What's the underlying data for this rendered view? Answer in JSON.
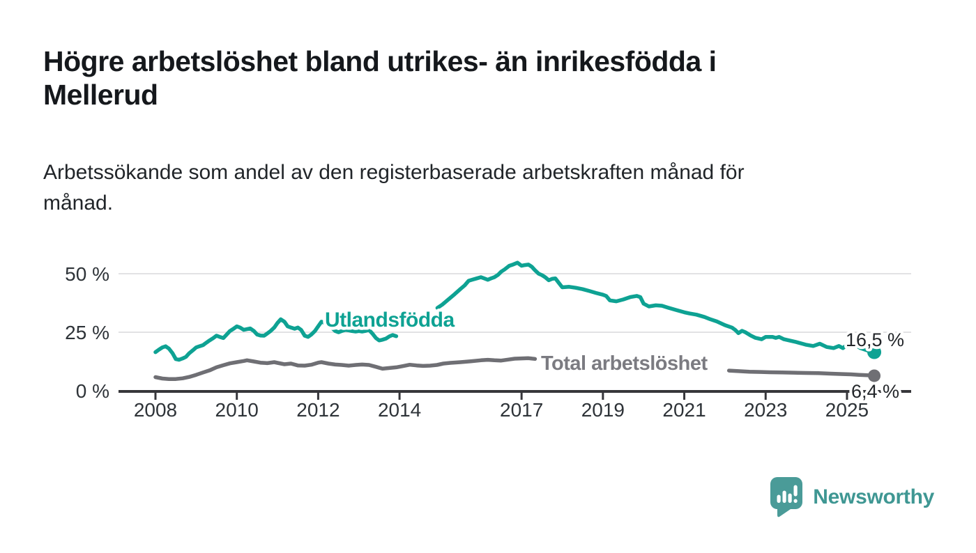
{
  "header": {
    "title": "Högre arbetslöshet bland utrikes- än inrikesfödda i Mellerud",
    "title_lines": [
      "Högre arbetslöshet bland utrikes- än inrikesfödda i",
      "Mellerud"
    ],
    "subtitle": "Arbetssökande som andel av den registerbaserade arbetskraften månad för månad.",
    "subtitle_lines": [
      "Arbetssökande som andel av den registerbaserade arbetskraften månad för",
      "månad."
    ]
  },
  "chart_data": {
    "type": "line",
    "title": "Högre arbetslöshet bland utrikes- än inrikesfödda i Mellerud",
    "subtitle": "Arbetssökande som andel av den registerbaserade arbetskraften månad för månad.",
    "grid": true,
    "legend_position": "inline-labels",
    "x": {
      "domain": [
        2008,
        2025.67
      ],
      "ticks": [
        2008,
        2010,
        2012,
        2014,
        2017,
        2019,
        2021,
        2023,
        2025
      ]
    },
    "y": {
      "ylim": [
        0,
        57
      ],
      "unit": "%",
      "ticks": [
        {
          "value": 0,
          "label": "0 %"
        },
        {
          "value": 25,
          "label": "25 %"
        },
        {
          "value": 50,
          "label": "50 %"
        }
      ],
      "gridlines": [
        25,
        50
      ]
    },
    "series": [
      {
        "name": "Utlandsfödda",
        "color": "#0ea293",
        "label_color": "#0ea293",
        "end_value": 16.5,
        "end_label": "16,5 %",
        "label_gap": [
          2013.95,
          2014.9
        ],
        "points": [
          [
            2008.0,
            16.5
          ],
          [
            2008.08,
            17.5
          ],
          [
            2008.17,
            18.5
          ],
          [
            2008.25,
            19.0
          ],
          [
            2008.33,
            18.0
          ],
          [
            2008.42,
            16.0
          ],
          [
            2008.5,
            13.5
          ],
          [
            2008.58,
            13.2
          ],
          [
            2008.67,
            13.8
          ],
          [
            2008.75,
            14.5
          ],
          [
            2008.83,
            16.0
          ],
          [
            2008.92,
            17.3
          ],
          [
            2009.0,
            18.5
          ],
          [
            2009.08,
            19.0
          ],
          [
            2009.17,
            19.5
          ],
          [
            2009.25,
            20.5
          ],
          [
            2009.33,
            21.5
          ],
          [
            2009.42,
            22.5
          ],
          [
            2009.5,
            23.5
          ],
          [
            2009.58,
            23.0
          ],
          [
            2009.67,
            22.5
          ],
          [
            2009.75,
            24.0
          ],
          [
            2009.83,
            25.5
          ],
          [
            2009.92,
            26.5
          ],
          [
            2010.0,
            27.5
          ],
          [
            2010.08,
            27.0
          ],
          [
            2010.17,
            26.0
          ],
          [
            2010.25,
            26.3
          ],
          [
            2010.33,
            26.6
          ],
          [
            2010.42,
            25.5
          ],
          [
            2010.5,
            24.0
          ],
          [
            2010.58,
            23.6
          ],
          [
            2010.67,
            23.5
          ],
          [
            2010.75,
            24.5
          ],
          [
            2010.83,
            25.5
          ],
          [
            2010.92,
            27.0
          ],
          [
            2011.0,
            29.0
          ],
          [
            2011.08,
            30.5
          ],
          [
            2011.17,
            29.5
          ],
          [
            2011.25,
            27.5
          ],
          [
            2011.33,
            27.0
          ],
          [
            2011.42,
            26.5
          ],
          [
            2011.5,
            27.0
          ],
          [
            2011.58,
            26.0
          ],
          [
            2011.67,
            23.5
          ],
          [
            2011.75,
            23.0
          ],
          [
            2011.83,
            24.0
          ],
          [
            2011.92,
            25.5
          ],
          [
            2012.0,
            27.5
          ],
          [
            2012.08,
            29.5
          ],
          [
            2012.17,
            29.0
          ],
          [
            2012.25,
            28.5
          ],
          [
            2012.33,
            27.0
          ],
          [
            2012.42,
            25.5
          ],
          [
            2012.5,
            25.0
          ],
          [
            2012.58,
            25.5
          ],
          [
            2012.67,
            26.0
          ],
          [
            2012.75,
            25.8
          ],
          [
            2012.83,
            25.5
          ],
          [
            2012.92,
            25.3
          ],
          [
            2013.0,
            25.5
          ],
          [
            2013.08,
            25.3
          ],
          [
            2013.17,
            25.6
          ],
          [
            2013.25,
            26.0
          ],
          [
            2013.33,
            24.5
          ],
          [
            2013.42,
            22.5
          ],
          [
            2013.5,
            21.5
          ],
          [
            2013.58,
            21.8
          ],
          [
            2013.67,
            22.3
          ],
          [
            2013.75,
            23.2
          ],
          [
            2013.83,
            23.8
          ],
          [
            2013.92,
            23.3
          ],
          [
            2014.1,
            26.0
          ],
          [
            2014.3,
            28.5
          ],
          [
            2014.5,
            31.0
          ],
          [
            2014.7,
            33.2
          ],
          [
            2014.93,
            35.4
          ],
          [
            2015.05,
            36.8
          ],
          [
            2015.2,
            39.0
          ],
          [
            2015.35,
            41.2
          ],
          [
            2015.5,
            43.5
          ],
          [
            2015.6,
            45.0
          ],
          [
            2015.7,
            47.0
          ],
          [
            2015.8,
            47.5
          ],
          [
            2015.9,
            48.0
          ],
          [
            2016.0,
            48.5
          ],
          [
            2016.08,
            48.0
          ],
          [
            2016.17,
            47.4
          ],
          [
            2016.25,
            48.0
          ],
          [
            2016.33,
            48.5
          ],
          [
            2016.42,
            49.5
          ],
          [
            2016.5,
            50.9
          ],
          [
            2016.58,
            51.8
          ],
          [
            2016.7,
            53.4
          ],
          [
            2016.8,
            54.0
          ],
          [
            2016.9,
            54.7
          ],
          [
            2017.0,
            53.4
          ],
          [
            2017.08,
            53.7
          ],
          [
            2017.17,
            53.9
          ],
          [
            2017.25,
            53.0
          ],
          [
            2017.33,
            51.5
          ],
          [
            2017.42,
            50.0
          ],
          [
            2017.5,
            49.4
          ],
          [
            2017.58,
            48.5
          ],
          [
            2017.67,
            47.2
          ],
          [
            2017.75,
            47.8
          ],
          [
            2017.83,
            48.0
          ],
          [
            2017.92,
            46.0
          ],
          [
            2018.0,
            44.2
          ],
          [
            2018.17,
            44.4
          ],
          [
            2018.33,
            44.0
          ],
          [
            2018.5,
            43.4
          ],
          [
            2018.67,
            42.6
          ],
          [
            2018.83,
            41.8
          ],
          [
            2019.0,
            41.0
          ],
          [
            2019.08,
            40.5
          ],
          [
            2019.17,
            38.6
          ],
          [
            2019.33,
            38.2
          ],
          [
            2019.5,
            39.0
          ],
          [
            2019.67,
            40.0
          ],
          [
            2019.83,
            40.5
          ],
          [
            2019.92,
            40.0
          ],
          [
            2020.0,
            37.2
          ],
          [
            2020.13,
            36.0
          ],
          [
            2020.3,
            36.5
          ],
          [
            2020.45,
            36.3
          ],
          [
            2020.6,
            35.5
          ],
          [
            2020.8,
            34.5
          ],
          [
            2021.0,
            33.5
          ],
          [
            2021.13,
            33.0
          ],
          [
            2021.3,
            32.5
          ],
          [
            2021.5,
            31.5
          ],
          [
            2021.63,
            30.6
          ],
          [
            2021.8,
            29.6
          ],
          [
            2022.0,
            28.0
          ],
          [
            2022.17,
            27.0
          ],
          [
            2022.25,
            26.0
          ],
          [
            2022.33,
            24.6
          ],
          [
            2022.42,
            25.6
          ],
          [
            2022.5,
            25.0
          ],
          [
            2022.63,
            23.6
          ],
          [
            2022.75,
            22.6
          ],
          [
            2022.9,
            22.0
          ],
          [
            2023.0,
            23.0
          ],
          [
            2023.17,
            23.0
          ],
          [
            2023.25,
            22.6
          ],
          [
            2023.33,
            23.0
          ],
          [
            2023.45,
            22.0
          ],
          [
            2023.58,
            21.5
          ],
          [
            2023.75,
            20.8
          ],
          [
            2023.9,
            20.1
          ],
          [
            2024.0,
            19.6
          ],
          [
            2024.17,
            19.1
          ],
          [
            2024.33,
            20.1
          ],
          [
            2024.5,
            18.7
          ],
          [
            2024.67,
            18.2
          ],
          [
            2024.8,
            19.1
          ],
          [
            2024.9,
            18.2
          ],
          [
            2025.0,
            19.6
          ],
          [
            2025.1,
            21.0
          ],
          [
            2025.2,
            19.6
          ],
          [
            2025.33,
            18.2
          ],
          [
            2025.5,
            17.2
          ],
          [
            2025.67,
            16.5
          ]
        ]
      },
      {
        "name": "Total arbetslöshet",
        "color": "#6f6f74",
        "label_color": "#7b7b81",
        "end_value": 6.4,
        "end_label": "6,4 %",
        "label_gap": [
          2017.45,
          2022.05
        ],
        "points": [
          [
            2008.0,
            5.8
          ],
          [
            2008.17,
            5.2
          ],
          [
            2008.33,
            5.0
          ],
          [
            2008.5,
            5.0
          ],
          [
            2008.67,
            5.3
          ],
          [
            2008.83,
            5.9
          ],
          [
            2009.0,
            6.8
          ],
          [
            2009.17,
            7.8
          ],
          [
            2009.33,
            8.7
          ],
          [
            2009.5,
            10.0
          ],
          [
            2009.67,
            10.9
          ],
          [
            2009.83,
            11.7
          ],
          [
            2010.0,
            12.2
          ],
          [
            2010.17,
            12.7
          ],
          [
            2010.25,
            13.0
          ],
          [
            2010.42,
            12.5
          ],
          [
            2010.58,
            12.0
          ],
          [
            2010.75,
            11.8
          ],
          [
            2010.92,
            12.2
          ],
          [
            2011.0,
            11.9
          ],
          [
            2011.17,
            11.3
          ],
          [
            2011.33,
            11.6
          ],
          [
            2011.5,
            10.8
          ],
          [
            2011.67,
            10.7
          ],
          [
            2011.83,
            11.1
          ],
          [
            2012.0,
            12.0
          ],
          [
            2012.08,
            12.2
          ],
          [
            2012.25,
            11.6
          ],
          [
            2012.42,
            11.2
          ],
          [
            2012.58,
            11.0
          ],
          [
            2012.75,
            10.7
          ],
          [
            2012.92,
            11.0
          ],
          [
            2013.08,
            11.2
          ],
          [
            2013.25,
            11.0
          ],
          [
            2013.42,
            10.2
          ],
          [
            2013.58,
            9.4
          ],
          [
            2013.75,
            9.7
          ],
          [
            2013.92,
            10.0
          ],
          [
            2014.08,
            10.5
          ],
          [
            2014.25,
            11.1
          ],
          [
            2014.42,
            10.8
          ],
          [
            2014.58,
            10.6
          ],
          [
            2014.75,
            10.7
          ],
          [
            2014.92,
            11.0
          ],
          [
            2015.08,
            11.6
          ],
          [
            2015.25,
            11.9
          ],
          [
            2015.5,
            12.2
          ],
          [
            2015.75,
            12.6
          ],
          [
            2016.0,
            13.0
          ],
          [
            2016.17,
            13.2
          ],
          [
            2016.33,
            13.0
          ],
          [
            2016.5,
            12.9
          ],
          [
            2016.67,
            13.3
          ],
          [
            2016.83,
            13.7
          ],
          [
            2017.0,
            13.8
          ],
          [
            2017.17,
            13.9
          ],
          [
            2017.33,
            13.6
          ],
          [
            2017.6,
            13.2
          ],
          [
            2018.0,
            12.5
          ],
          [
            2018.5,
            11.9
          ],
          [
            2019.0,
            11.3
          ],
          [
            2019.5,
            10.8
          ],
          [
            2020.0,
            10.5
          ],
          [
            2020.5,
            10.2
          ],
          [
            2021.0,
            9.8
          ],
          [
            2021.5,
            9.3
          ],
          [
            2022.0,
            8.8
          ],
          [
            2022.1,
            8.6
          ],
          [
            2022.3,
            8.4
          ],
          [
            2022.6,
            8.1
          ],
          [
            2022.9,
            8.0
          ],
          [
            2023.1,
            7.9
          ],
          [
            2023.4,
            7.8
          ],
          [
            2023.7,
            7.7
          ],
          [
            2024.0,
            7.6
          ],
          [
            2024.3,
            7.5
          ],
          [
            2024.6,
            7.3
          ],
          [
            2024.9,
            7.1
          ],
          [
            2025.1,
            7.0
          ],
          [
            2025.3,
            6.8
          ],
          [
            2025.5,
            6.6
          ],
          [
            2025.67,
            6.4
          ]
        ]
      }
    ]
  },
  "footer": {
    "brand": "Newsworthy",
    "brand_color": "#3f9793"
  }
}
